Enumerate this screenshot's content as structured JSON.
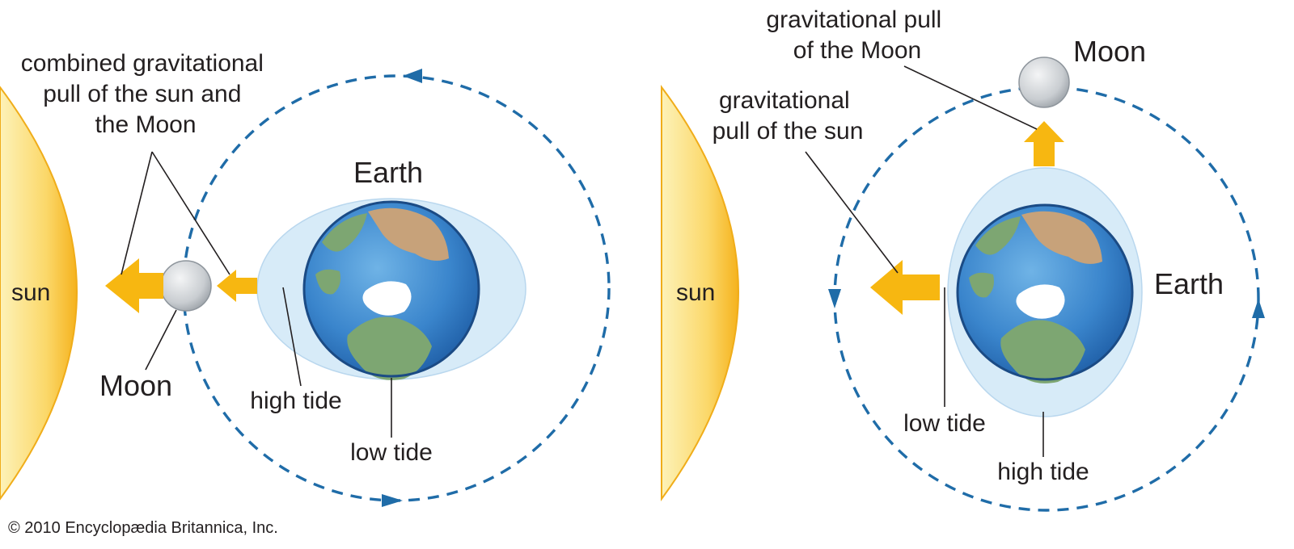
{
  "left_panel": {
    "sun_label": "sun",
    "earth_label": "Earth",
    "moon_label": "Moon",
    "pull_label_lines": [
      "combined gravitational",
      "pull of the sun and",
      "the Moon"
    ],
    "high_tide_label": "high tide",
    "low_tide_label": "low tide"
  },
  "right_panel": {
    "sun_label": "sun",
    "earth_label": "Earth",
    "moon_label": "Moon",
    "moon_pull_label_lines": [
      "gravitational pull",
      "of the Moon"
    ],
    "sun_pull_label_lines": [
      "gravitational",
      "pull of the sun"
    ],
    "low_tide_label": "low tide",
    "high_tide_label": "high tide"
  },
  "copyright": "© 2010 Encyclopædia Britannica, Inc.",
  "colors": {
    "sun": "#f7b711",
    "pull_arrow": "#f7b711",
    "orbit": "#1f6ca8",
    "water_bulge": "#d7ebf8",
    "moon": "#c9cdd1"
  }
}
